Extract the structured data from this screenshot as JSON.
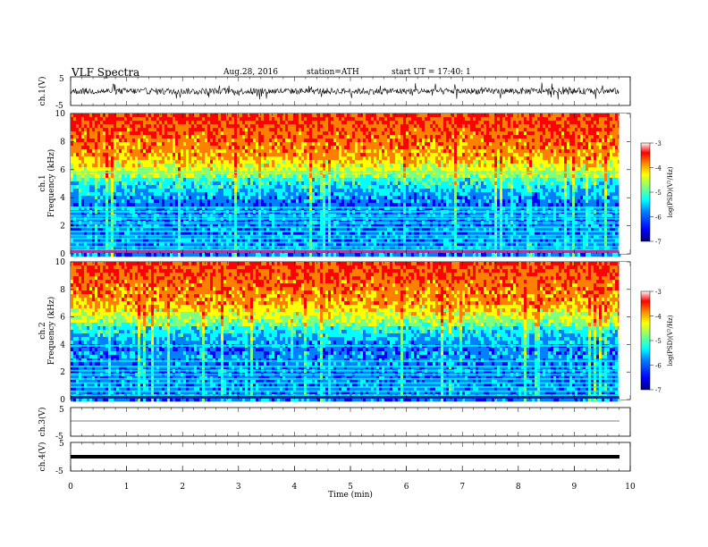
{
  "header": {
    "title": "VLF Spectra",
    "date": "Aug.28, 2016",
    "station": "station=ATH",
    "start_ut": "start UT = 17:40: 1"
  },
  "colors": {
    "colormap_jet": [
      "#00007f",
      "#0000ff",
      "#007fff",
      "#00ffff",
      "#7fff7f",
      "#ffff00",
      "#ff7f00",
      "#ff0000",
      "#ff8f8f",
      "#ffffff"
    ]
  },
  "chart_data": [
    {
      "id": "ch1-waveform",
      "type": "line",
      "ylabel": "ch.1(V)",
      "ylim": [
        -5,
        5
      ],
      "yticks": [
        "5",
        "-5"
      ],
      "xlim": [
        0,
        10
      ],
      "description_level": "noisy signal around 0 V, spikes to about ±2.5 V"
    },
    {
      "id": "ch1-spectrogram",
      "type": "heatmap",
      "ylabel": "ch.1\nFrequency (kHz)",
      "ylim": [
        0,
        10
      ],
      "yticks": [
        "0",
        "2",
        "4",
        "6",
        "8",
        "10"
      ],
      "colorbar": {
        "label": "log(PSD)(V²/Hz)",
        "range": [
          -7,
          -3
        ],
        "ticks": [
          "-3",
          "-4",
          "-5",
          "-6",
          "-7"
        ]
      },
      "bands_khz": [
        0.3,
        0.5,
        0.8,
        1.1,
        1.3,
        1.6,
        1.9,
        2.2,
        2.5,
        2.7,
        3.0,
        3.3,
        5.8
      ]
    },
    {
      "id": "ch2-spectrogram",
      "type": "heatmap",
      "ylabel": "ch.2\nFrequency (kHz)",
      "ylim": [
        0,
        10
      ],
      "yticks": [
        "0",
        "2",
        "4",
        "6",
        "8",
        "10"
      ],
      "colorbar": {
        "label": "log(PSD)(V²/Hz)",
        "range": [
          -7,
          -3
        ],
        "ticks": [
          "-3",
          "-4",
          "-5",
          "-6",
          "-7"
        ]
      },
      "bands_khz": [
        0.3,
        0.6,
        0.9,
        1.2,
        1.5,
        1.8,
        2.1,
        2.4,
        2.8,
        3.9
      ]
    },
    {
      "id": "ch3-waveform",
      "type": "line",
      "ylabel": "ch.3(V)",
      "ylim": [
        -5,
        5
      ],
      "yticks": [
        "5",
        "-5"
      ],
      "level_v": 0
    },
    {
      "id": "ch4-waveform",
      "type": "line",
      "ylabel": "ch.4(V)",
      "ylim": [
        -5,
        5
      ],
      "yticks": [
        "5",
        "-5"
      ],
      "level_v": 0
    }
  ],
  "xaxis": {
    "label": "Time (min)",
    "ticks": [
      "0",
      "1",
      "2",
      "3",
      "4",
      "5",
      "6",
      "7",
      "8",
      "9",
      "10"
    ],
    "range": [
      0,
      10
    ],
    "data_end": 9.8
  }
}
